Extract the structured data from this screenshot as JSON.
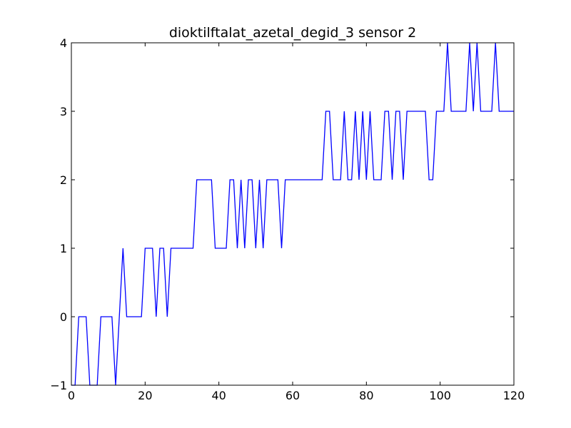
{
  "chart_data": {
    "type": "line",
    "title": "dioktilftalat_azetal_degid_3 sensor 2",
    "xlabel": "",
    "ylabel": "",
    "xlim": [
      0,
      120
    ],
    "ylim": [
      -1,
      4
    ],
    "xticks": [
      "0",
      "20",
      "40",
      "60",
      "80",
      "100",
      "120"
    ],
    "yticks": [
      "−1",
      "0",
      "1",
      "2",
      "3",
      "4"
    ],
    "grid": false,
    "line_color": "#0000ff",
    "x": [
      0,
      1,
      2,
      3,
      4,
      5,
      6,
      7,
      8,
      9,
      10,
      11,
      12,
      13,
      14,
      15,
      16,
      17,
      18,
      19,
      20,
      21,
      22,
      23,
      24,
      25,
      26,
      27,
      28,
      29,
      30,
      31,
      32,
      33,
      34,
      35,
      36,
      37,
      38,
      39,
      40,
      41,
      42,
      43,
      44,
      45,
      46,
      47,
      48,
      49,
      50,
      51,
      52,
      53,
      54,
      55,
      56,
      57,
      58,
      59,
      60,
      61,
      62,
      63,
      64,
      65,
      66,
      67,
      68,
      69,
      70,
      71,
      72,
      73,
      74,
      75,
      76,
      77,
      78,
      79,
      80,
      81,
      82,
      83,
      84,
      85,
      86,
      87,
      88,
      89,
      90,
      91,
      92,
      93,
      94,
      95,
      96,
      97,
      98,
      99,
      100,
      101,
      102,
      103,
      104,
      105,
      106,
      107,
      108,
      109,
      110,
      111,
      112,
      113,
      114,
      115,
      116,
      117,
      118,
      119,
      120
    ],
    "y": [
      -1,
      -1,
      0,
      0,
      0,
      -1,
      -1,
      -1,
      0,
      0,
      0,
      0,
      -1,
      0,
      1,
      0,
      0,
      0,
      0,
      0,
      1,
      1,
      1,
      0,
      1,
      1,
      0,
      1,
      1,
      1,
      1,
      1,
      1,
      1,
      2,
      2,
      2,
      2,
      2,
      1,
      1,
      1,
      1,
      2,
      2,
      1,
      2,
      1,
      2,
      2,
      1,
      2,
      1,
      2,
      2,
      2,
      2,
      1,
      2,
      2,
      2,
      2,
      2,
      2,
      2,
      2,
      2,
      2,
      2,
      3,
      3,
      2,
      2,
      2,
      3,
      2,
      2,
      3,
      2,
      3,
      2,
      3,
      2,
      2,
      2,
      3,
      3,
      2,
      3,
      3,
      2,
      3,
      3,
      3,
      3,
      3,
      3,
      2,
      2,
      3,
      3,
      3,
      4,
      3,
      3,
      3,
      3,
      3,
      4,
      3,
      4,
      3,
      3,
      3,
      3,
      4,
      3,
      3,
      3,
      3,
      3
    ]
  }
}
